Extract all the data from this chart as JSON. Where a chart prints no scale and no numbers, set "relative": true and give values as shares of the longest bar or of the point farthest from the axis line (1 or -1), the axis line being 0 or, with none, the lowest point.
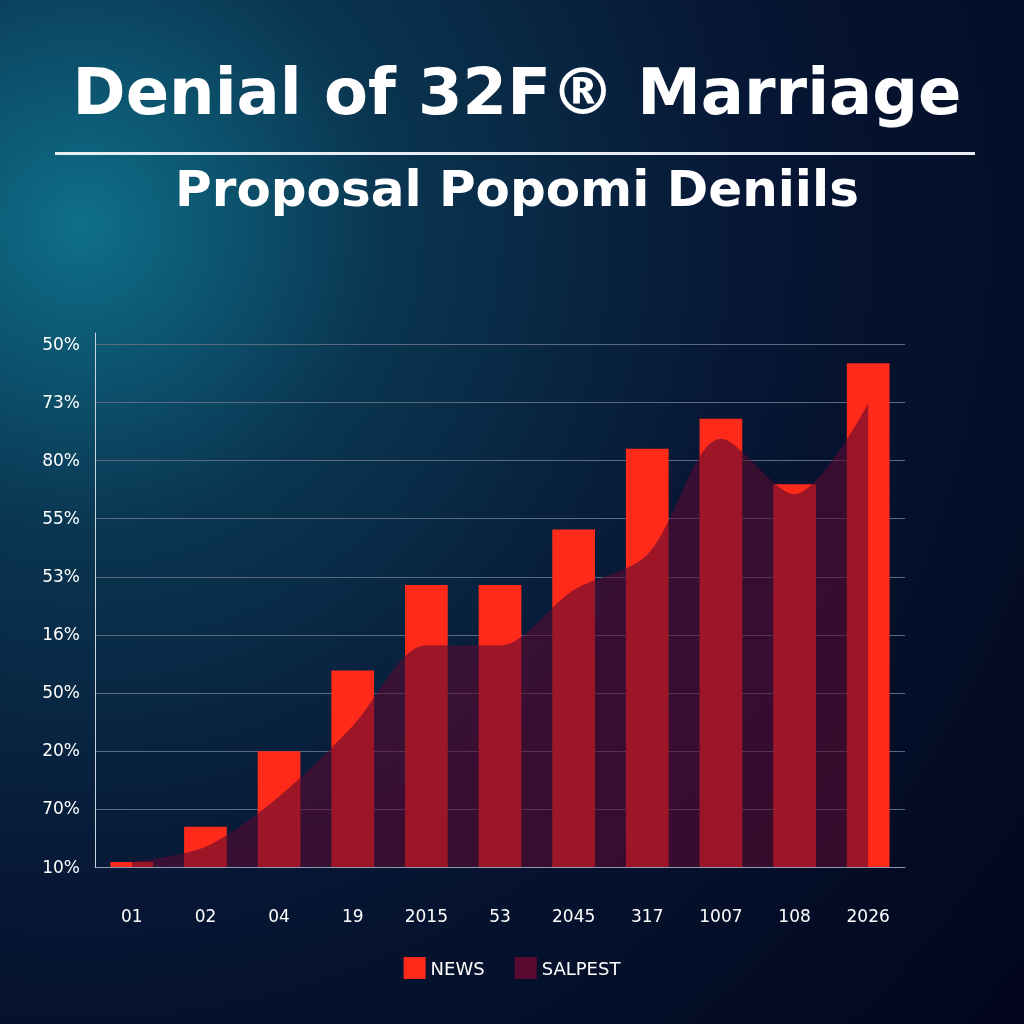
{
  "chart_data": {
    "type": "bar",
    "title": "Denial of 32F® Marriage",
    "subtitle": "Proposal Popomi Deniils",
    "categories": [
      "01",
      "02",
      "04",
      "19",
      "2015",
      "53",
      "2045",
      "317",
      "1007",
      "108",
      "2026"
    ],
    "relative": true,
    "series": [
      {
        "name": "NEWS",
        "color": "#ff2a1a",
        "values": [
          0.01,
          0.08,
          0.23,
          0.39,
          0.56,
          0.56,
          0.67,
          0.83,
          0.89,
          0.76,
          1.0
        ]
      },
      {
        "name": "SALPEST",
        "type": "area",
        "color": "#5a0a30",
        "values": [
          0.01,
          0.04,
          0.14,
          0.28,
          0.44,
          0.44,
          0.55,
          0.62,
          0.85,
          0.74,
          0.92
        ]
      }
    ],
    "annotations": [
      "50%",
      "73%",
      "80%",
      "55%",
      "53%",
      "16%",
      "50%",
      "20%",
      "70%",
      "10%"
    ],
    "grid": "y",
    "legend": "bottom"
  }
}
